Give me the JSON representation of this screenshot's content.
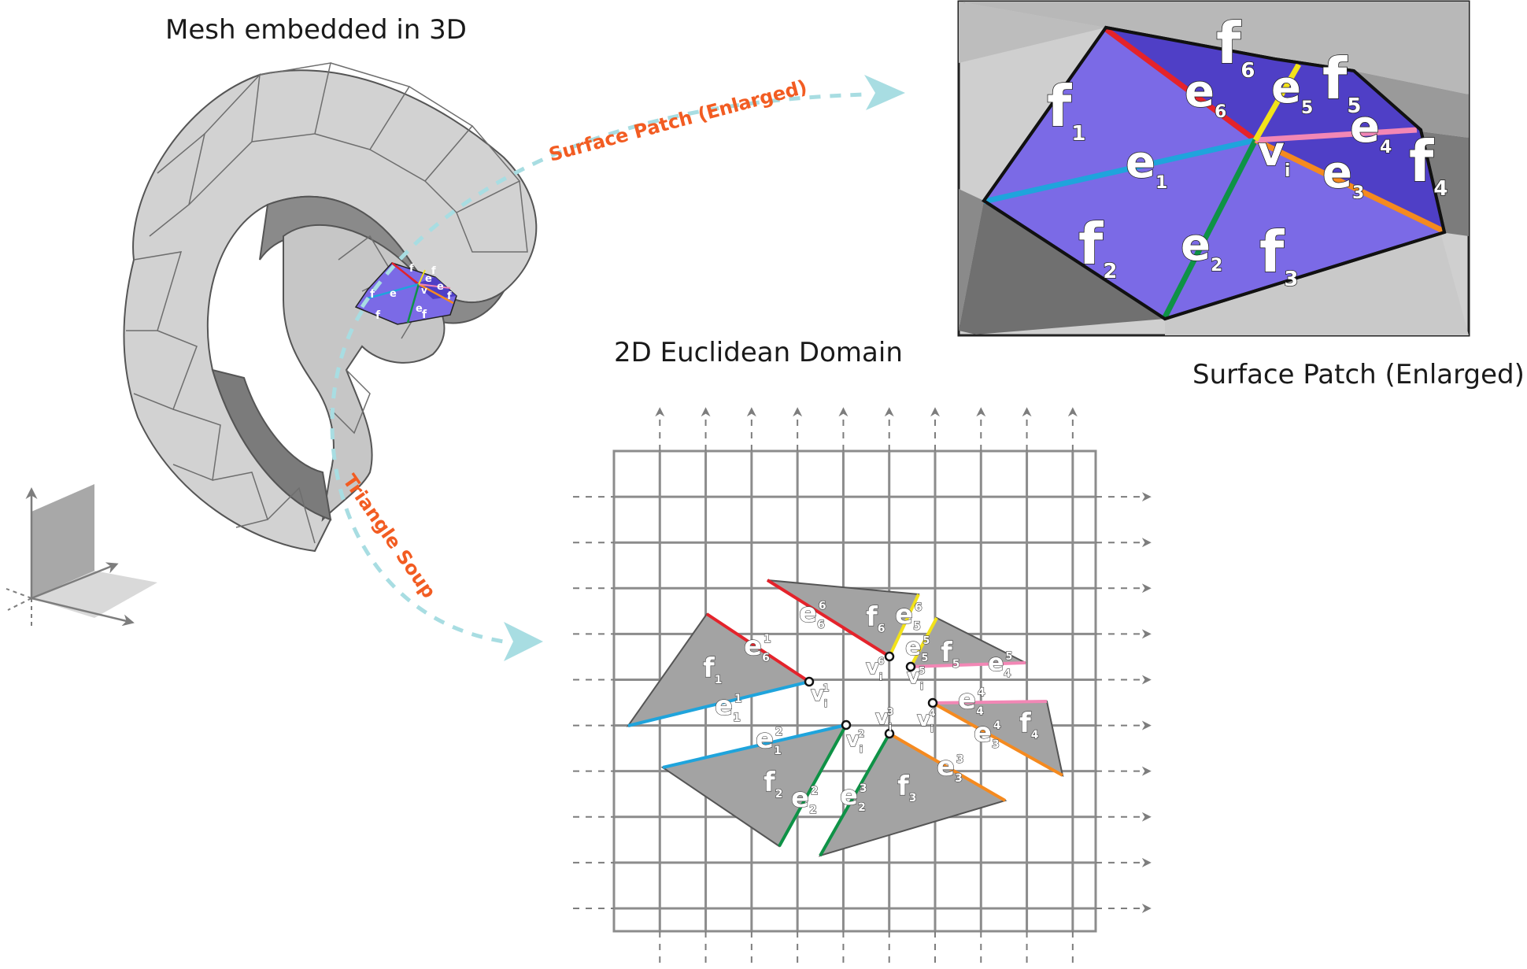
{
  "captions": {
    "mesh": "Mesh embedded in 3D",
    "domain": "2D Euclidean Domain",
    "patch": "Surface Patch (Enlarged)"
  },
  "arrows": {
    "to_patch": "Surface Patch (Enlarged)",
    "to_soup": "Triangle Soup"
  },
  "colors": {
    "patch_fill": "#7b6ae6",
    "patch_dark": "#4f3fc6",
    "mesh_light": "#d4d4d4",
    "mesh_dark": "#8a8a8a",
    "soup_fill": "#a3a3a3",
    "arrow_dash": "#a8dde2",
    "arrow_label": "#f25c22",
    "e1": "#1fa4dc",
    "e2": "#0e9246",
    "e3": "#f58a1f",
    "e4": "#f287b5",
    "e5": "#f2e21a",
    "e6": "#e4232b",
    "grid": "#8c8c8c"
  },
  "patch_labels": {
    "faces": [
      {
        "base": "f",
        "sub": "1"
      },
      {
        "base": "f",
        "sub": "2"
      },
      {
        "base": "f",
        "sub": "3"
      },
      {
        "base": "f",
        "sub": "4"
      },
      {
        "base": "f",
        "sub": "5"
      },
      {
        "base": "f",
        "sub": "6"
      }
    ],
    "edges": [
      {
        "base": "e",
        "sub": "1"
      },
      {
        "base": "e",
        "sub": "2"
      },
      {
        "base": "e",
        "sub": "3"
      },
      {
        "base": "e",
        "sub": "4"
      },
      {
        "base": "e",
        "sub": "5"
      },
      {
        "base": "e",
        "sub": "6"
      }
    ],
    "vertex": {
      "base": "v",
      "sub": "i"
    }
  },
  "soup_labels": [
    {
      "base": "f",
      "sub": "1"
    },
    {
      "base": "e",
      "sub": "6",
      "sup": "1"
    },
    {
      "base": "e",
      "sub": "1",
      "sup": "1"
    },
    {
      "base": "v",
      "sub": "i",
      "sup": "1"
    },
    {
      "base": "f",
      "sub": "2"
    },
    {
      "base": "e",
      "sub": "1",
      "sup": "2"
    },
    {
      "base": "e",
      "sub": "2",
      "sup": "2"
    },
    {
      "base": "v",
      "sub": "i",
      "sup": "2"
    },
    {
      "base": "f",
      "sub": "3"
    },
    {
      "base": "e",
      "sub": "2",
      "sup": "3"
    },
    {
      "base": "e",
      "sub": "3",
      "sup": "3"
    },
    {
      "base": "v",
      "sub": "i",
      "sup": "3"
    },
    {
      "base": "f",
      "sub": "4"
    },
    {
      "base": "e",
      "sub": "4",
      "sup": "4"
    },
    {
      "base": "e",
      "sub": "3",
      "sup": "4"
    },
    {
      "base": "v",
      "sub": "i",
      "sup": "4"
    },
    {
      "base": "f",
      "sub": "5"
    },
    {
      "base": "e",
      "sub": "5",
      "sup": "5"
    },
    {
      "base": "e",
      "sub": "4",
      "sup": "5"
    },
    {
      "base": "v",
      "sub": "i",
      "sup": "5"
    },
    {
      "base": "f",
      "sub": "6"
    },
    {
      "base": "e",
      "sub": "6",
      "sup": "6"
    },
    {
      "base": "e",
      "sub": "5",
      "sup": "6"
    },
    {
      "base": "v",
      "sub": "i",
      "sup": "6"
    }
  ],
  "mini_patch_labels": [
    "f",
    "f",
    "f",
    "e",
    "e",
    "e",
    "e",
    "v",
    "f",
    "f",
    "f"
  ]
}
